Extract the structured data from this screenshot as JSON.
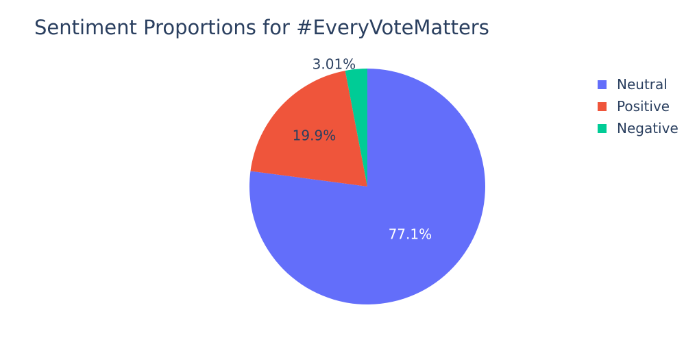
{
  "chart_data": {
    "type": "pie",
    "title": "Sentiment Proportions for #EveryVoteMatters",
    "categories": [
      "Neutral",
      "Positive",
      "Negative"
    ],
    "values": [
      77.1,
      19.9,
      3.01
    ],
    "labels": [
      "77.1%",
      "19.9%",
      "3.01%"
    ],
    "colors": [
      "#636efa",
      "#ef553b",
      "#00cc96"
    ],
    "label_colors": [
      "#ffffff",
      "#2a3f5f",
      "#2a3f5f"
    ],
    "label_position": [
      "inside",
      "inside",
      "outside"
    ],
    "start_angle_deg": 0,
    "direction": "clockwise",
    "legend_position": "top-right"
  }
}
